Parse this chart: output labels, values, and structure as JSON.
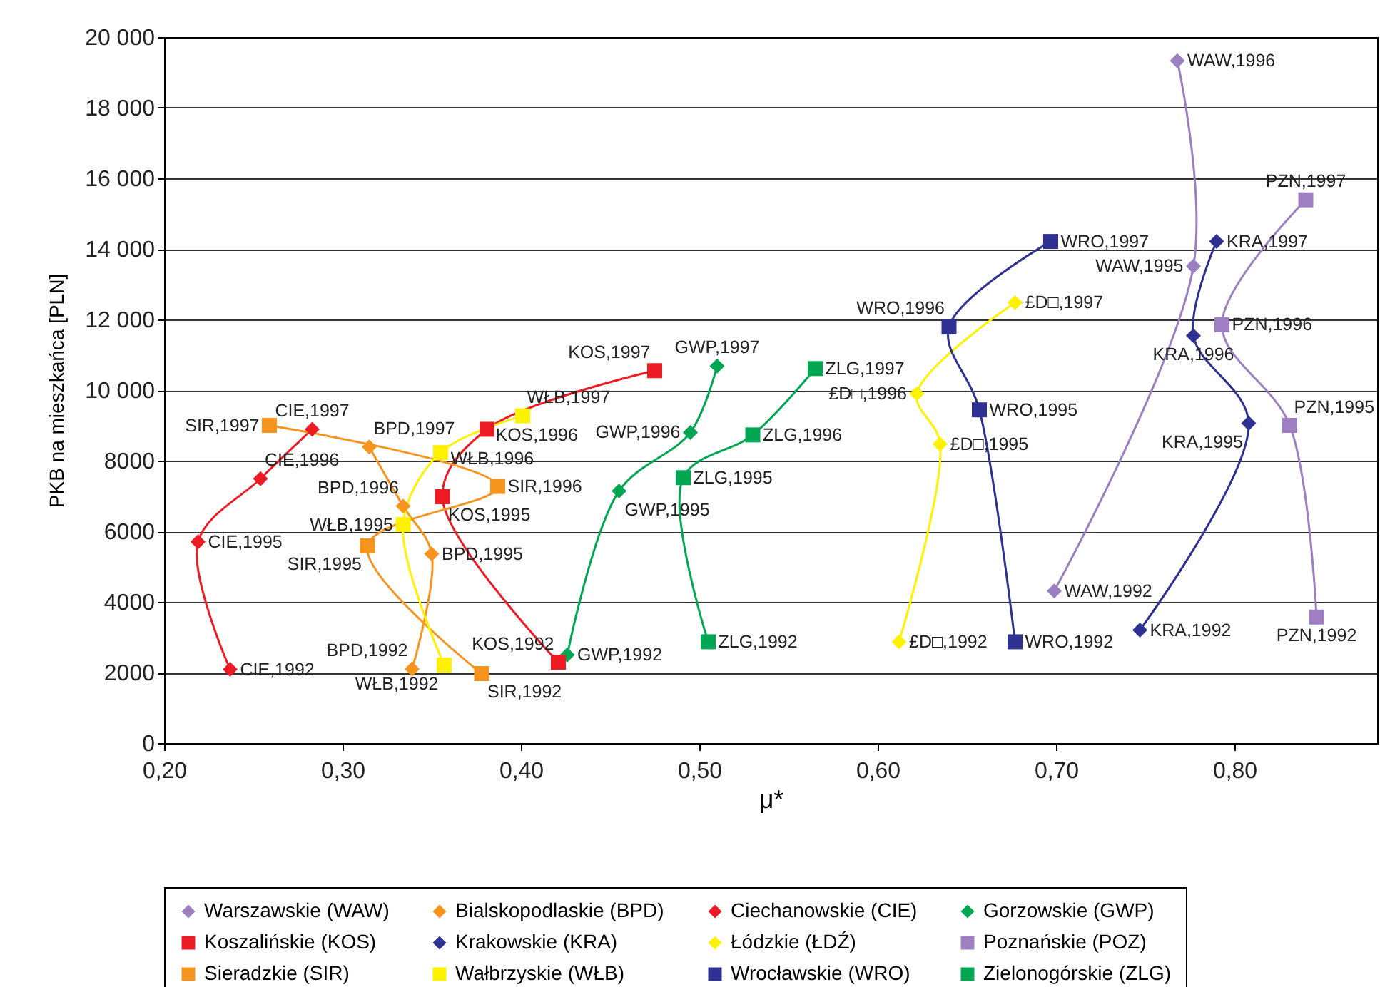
{
  "chart_data": {
    "type": "line",
    "xlabel": "μ*",
    "ylabel": "PKB na mieszkańca [PLN]",
    "xlim": [
      0.2,
      0.88
    ],
    "xticks": [
      {
        "value": 0.2,
        "label": "0,20"
      },
      {
        "value": 0.3,
        "label": "0,30"
      },
      {
        "value": 0.4,
        "label": "0,40"
      },
      {
        "value": 0.5,
        "label": "0,50"
      },
      {
        "value": 0.6,
        "label": "0,60"
      },
      {
        "value": 0.7,
        "label": "0,70"
      },
      {
        "value": 0.8,
        "label": "0,80"
      }
    ],
    "ylim": [
      0,
      20000
    ],
    "yticks": [
      0,
      2000,
      4000,
      6000,
      8000,
      {
        "value": 10000,
        "label": "10 000"
      },
      {
        "value": 12000,
        "label": "12 000"
      },
      {
        "value": 14000,
        "label": "14 000"
      },
      {
        "value": 16000,
        "label": "16 000"
      },
      {
        "value": 18000,
        "label": "18 000"
      },
      {
        "value": 20000,
        "label": "20 000"
      }
    ],
    "grid": "y",
    "legend": "bottom",
    "series": [
      {
        "name": "Warszawskie (WAW)",
        "color": "#9b7fc0",
        "marker": "diamond",
        "x": [
          0.699,
          0.777,
          0.768
        ],
        "values": [
          4310,
          13510,
          19330
        ]
      },
      {
        "name": "Bialskopodlaskie (BPD)",
        "color": "#f7941d",
        "marker": "diamond",
        "x": [
          0.339,
          0.35,
          0.334,
          0.315
        ],
        "values": [
          2100,
          5360,
          6710,
          8390
        ]
      },
      {
        "name": "Ciechanowskie (CIE)",
        "color": "#ed1c24",
        "marker": "diamond",
        "x": [
          0.237,
          0.219,
          0.254,
          0.283
        ],
        "values": [
          2090,
          5700,
          7490,
          8890
        ]
      },
      {
        "name": "Gorzowskie (GWP)",
        "color": "#00a651",
        "marker": "diamond",
        "x": [
          0.426,
          0.455,
          0.495,
          0.51
        ],
        "values": [
          2500,
          7140,
          8800,
          10680
        ]
      },
      {
        "name": "Koszalińskie (KOS)",
        "color": "#ed1c24",
        "marker": "square",
        "x": [
          0.421,
          0.356,
          0.381,
          0.475
        ],
        "values": [
          2290,
          6980,
          8890,
          10550
        ]
      },
      {
        "name": "Krakowskie (KRA)",
        "color": "#2e3192",
        "marker": "diamond",
        "x": [
          0.747,
          0.808,
          0.777,
          0.79
        ],
        "values": [
          3200,
          9060,
          11540,
          14210
        ]
      },
      {
        "name": "Łódzkie (ŁDŹ)",
        "color": "#fff200",
        "marker": "diamond",
        "x": [
          0.612,
          0.635,
          0.622,
          0.677
        ],
        "values": [
          2870,
          8470,
          9900,
          12480
        ]
      },
      {
        "name": "Poznańskie (POZ)",
        "color": "#9e7fc2",
        "marker": "square",
        "x": [
          0.846,
          0.831,
          0.793,
          0.84
        ],
        "values": [
          3570,
          9000,
          11850,
          15390
        ]
      },
      {
        "name": "Sieradzkie (SIR)",
        "color": "#f7941d",
        "marker": "square",
        "x": [
          0.378,
          0.314,
          0.387,
          0.259
        ],
        "values": [
          1970,
          5590,
          7270,
          9000
        ]
      },
      {
        "name": "Wałbrzyskie (WŁB)",
        "color": "#fff200",
        "marker": "square",
        "x": [
          0.357,
          0.334,
          0.355,
          0.401
        ],
        "values": [
          2210,
          6190,
          8230,
          9270
        ]
      },
      {
        "name": "Wrocławskie (WRO)",
        "color": "#2e3192",
        "marker": "square",
        "x": [
          0.677,
          0.657,
          0.64,
          0.697
        ],
        "values": [
          2870,
          9440,
          11790,
          14210
        ]
      },
      {
        "name": "Zielonogórskie (ZLG)",
        "color": "#00a651",
        "marker": "square",
        "x": [
          0.505,
          0.491,
          0.53,
          0.565
        ],
        "values": [
          2870,
          7520,
          8730,
          10610
        ]
      }
    ],
    "annotations": [
      {
        "text": "WAW,1992",
        "x": 0.699,
        "y": 4310
      },
      {
        "text": "WAW,1995",
        "x": 0.777,
        "y": 13510
      },
      {
        "text": "WAW,1996",
        "x": 0.768,
        "y": 19330
      },
      {
        "text": "BPD,1992",
        "x": 0.339,
        "y": 2100
      },
      {
        "text": "BPD,1995",
        "x": 0.35,
        "y": 5360
      },
      {
        "text": "BPD,1996",
        "x": 0.334,
        "y": 6710
      },
      {
        "text": "BPD,1997",
        "x": 0.315,
        "y": 8390
      },
      {
        "text": "CIE,1992",
        "x": 0.237,
        "y": 2090
      },
      {
        "text": "CIE,1995",
        "x": 0.219,
        "y": 5700
      },
      {
        "text": "CIE,1996",
        "x": 0.254,
        "y": 7490
      },
      {
        "text": "CIE,1997",
        "x": 0.283,
        "y": 8890
      },
      {
        "text": "GWP,1992",
        "x": 0.426,
        "y": 2500
      },
      {
        "text": "GWP,1995",
        "x": 0.455,
        "y": 7140
      },
      {
        "text": "GWP,1996",
        "x": 0.495,
        "y": 8800
      },
      {
        "text": "GWP,1997",
        "x": 0.51,
        "y": 10680
      },
      {
        "text": "KOS,1992",
        "x": 0.421,
        "y": 2290
      },
      {
        "text": "KOS,1995",
        "x": 0.356,
        "y": 6980
      },
      {
        "text": "KOS,1996",
        "x": 0.381,
        "y": 8890
      },
      {
        "text": "KOS,1997",
        "x": 0.475,
        "y": 10550
      },
      {
        "text": "KRA,1992",
        "x": 0.747,
        "y": 3200
      },
      {
        "text": "KRA,1995",
        "x": 0.808,
        "y": 9060
      },
      {
        "text": "KRA,1996",
        "x": 0.777,
        "y": 11540
      },
      {
        "text": "KRA,1997",
        "x": 0.79,
        "y": 14210
      },
      {
        "text": "£D□,1992",
        "x": 0.612,
        "y": 2870
      },
      {
        "text": "£D□,1995",
        "x": 0.635,
        "y": 8470
      },
      {
        "text": "£D□,1996",
        "x": 0.622,
        "y": 9900
      },
      {
        "text": "£D□,1997",
        "x": 0.677,
        "y": 12480
      },
      {
        "text": "PZN,1992",
        "x": 0.846,
        "y": 3570
      },
      {
        "text": "PZN,1995",
        "x": 0.831,
        "y": 9000
      },
      {
        "text": "PZN,1996",
        "x": 0.793,
        "y": 11850
      },
      {
        "text": "PZN,1997",
        "x": 0.84,
        "y": 15390
      },
      {
        "text": "SIR,1992",
        "x": 0.378,
        "y": 1970
      },
      {
        "text": "SIR,1995",
        "x": 0.314,
        "y": 5590
      },
      {
        "text": "SIR,1996",
        "x": 0.387,
        "y": 7270
      },
      {
        "text": "SIR,1997",
        "x": 0.259,
        "y": 9000
      },
      {
        "text": "WŁB,1992",
        "x": 0.357,
        "y": 2210
      },
      {
        "text": "WŁB,1995",
        "x": 0.334,
        "y": 6190
      },
      {
        "text": "WŁB,1996",
        "x": 0.355,
        "y": 8230
      },
      {
        "text": "WŁB,1997",
        "x": 0.401,
        "y": 9270
      },
      {
        "text": "WRO,1992",
        "x": 0.677,
        "y": 2870
      },
      {
        "text": "WRO,1995",
        "x": 0.657,
        "y": 9440
      },
      {
        "text": "WRO,1996",
        "x": 0.64,
        "y": 11790
      },
      {
        "text": "WRO,1997",
        "x": 0.697,
        "y": 14210
      },
      {
        "text": "ZLG,1992",
        "x": 0.505,
        "y": 2870
      },
      {
        "text": "ZLG,1995",
        "x": 0.491,
        "y": 7520
      },
      {
        "text": "ZLG,1996",
        "x": 0.53,
        "y": 8730
      },
      {
        "text": "ZLG,1997",
        "x": 0.565,
        "y": 10610
      }
    ]
  }
}
